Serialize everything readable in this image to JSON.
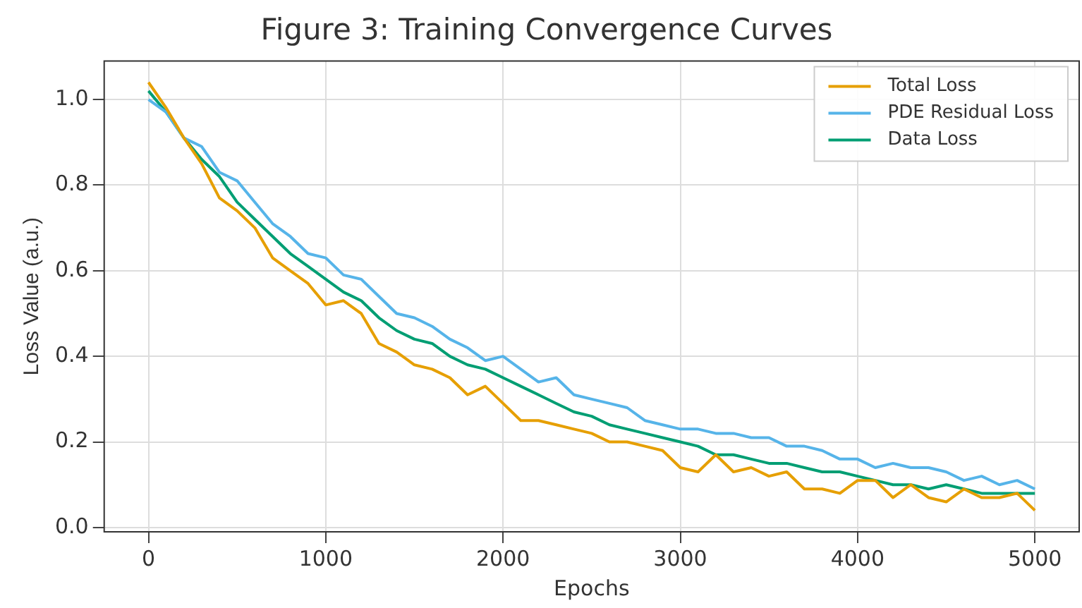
{
  "chart_data": {
    "type": "line",
    "title": "Figure 3: Training Convergence Curves",
    "xlabel": "Epochs",
    "ylabel": "Loss Value (a.u.)",
    "x": [
      0,
      100,
      200,
      300,
      400,
      500,
      600,
      700,
      800,
      900,
      1000,
      1100,
      1200,
      1300,
      1400,
      1500,
      1600,
      1700,
      1800,
      1900,
      2000,
      2100,
      2200,
      2300,
      2400,
      2500,
      2600,
      2700,
      2800,
      2900,
      3000,
      3100,
      3200,
      3300,
      3400,
      3500,
      3600,
      3700,
      3800,
      3900,
      4000,
      4100,
      4200,
      4300,
      4400,
      4500,
      4600,
      4700,
      4800,
      4900,
      5000
    ],
    "series": [
      {
        "name": "Total Loss",
        "color": "#e69f00",
        "values": [
          1.04,
          0.98,
          0.91,
          0.85,
          0.77,
          0.74,
          0.7,
          0.63,
          0.6,
          0.57,
          0.52,
          0.53,
          0.5,
          0.43,
          0.41,
          0.38,
          0.37,
          0.35,
          0.31,
          0.33,
          0.29,
          0.25,
          0.25,
          0.24,
          0.23,
          0.22,
          0.2,
          0.2,
          0.19,
          0.18,
          0.14,
          0.13,
          0.17,
          0.13,
          0.14,
          0.12,
          0.13,
          0.09,
          0.09,
          0.08,
          0.11,
          0.11,
          0.07,
          0.1,
          0.07,
          0.06,
          0.09,
          0.07,
          0.07,
          0.08,
          0.04
        ]
      },
      {
        "name": "PDE Residual Loss",
        "color": "#56b4e9",
        "values": [
          1.0,
          0.97,
          0.91,
          0.89,
          0.83,
          0.81,
          0.76,
          0.71,
          0.68,
          0.64,
          0.63,
          0.59,
          0.58,
          0.54,
          0.5,
          0.49,
          0.47,
          0.44,
          0.42,
          0.39,
          0.4,
          0.37,
          0.34,
          0.35,
          0.31,
          0.3,
          0.29,
          0.28,
          0.25,
          0.24,
          0.23,
          0.23,
          0.22,
          0.22,
          0.21,
          0.21,
          0.19,
          0.19,
          0.18,
          0.16,
          0.16,
          0.14,
          0.15,
          0.14,
          0.14,
          0.13,
          0.11,
          0.12,
          0.1,
          0.11,
          0.09
        ]
      },
      {
        "name": "Data Loss",
        "color": "#009e73",
        "values": [
          1.02,
          0.97,
          0.91,
          0.86,
          0.82,
          0.76,
          0.72,
          0.68,
          0.64,
          0.61,
          0.58,
          0.55,
          0.53,
          0.49,
          0.46,
          0.44,
          0.43,
          0.4,
          0.38,
          0.37,
          0.35,
          0.33,
          0.31,
          0.29,
          0.27,
          0.26,
          0.24,
          0.23,
          0.22,
          0.21,
          0.2,
          0.19,
          0.17,
          0.17,
          0.16,
          0.15,
          0.15,
          0.14,
          0.13,
          0.13,
          0.12,
          0.11,
          0.1,
          0.1,
          0.09,
          0.1,
          0.09,
          0.08,
          0.08,
          0.08,
          0.08
        ]
      }
    ],
    "xlim": [
      -250,
      5250
    ],
    "xticks": [
      0,
      1000,
      2000,
      3000,
      4000,
      5000
    ],
    "ylim": [
      -0.01,
      1.09
    ],
    "yticks": [
      {
        "value": 0,
        "label": "0.0"
      },
      {
        "value": 0.2,
        "label": "0.2"
      },
      {
        "value": 0.4,
        "label": "0.4"
      },
      {
        "value": 0.6,
        "label": "0.6"
      },
      {
        "value": 0.8,
        "label": "0.8"
      },
      {
        "value": 1,
        "label": "1.0"
      }
    ],
    "grid": true,
    "legend": "top right",
    "marker": "none",
    "line_style": "solid"
  }
}
